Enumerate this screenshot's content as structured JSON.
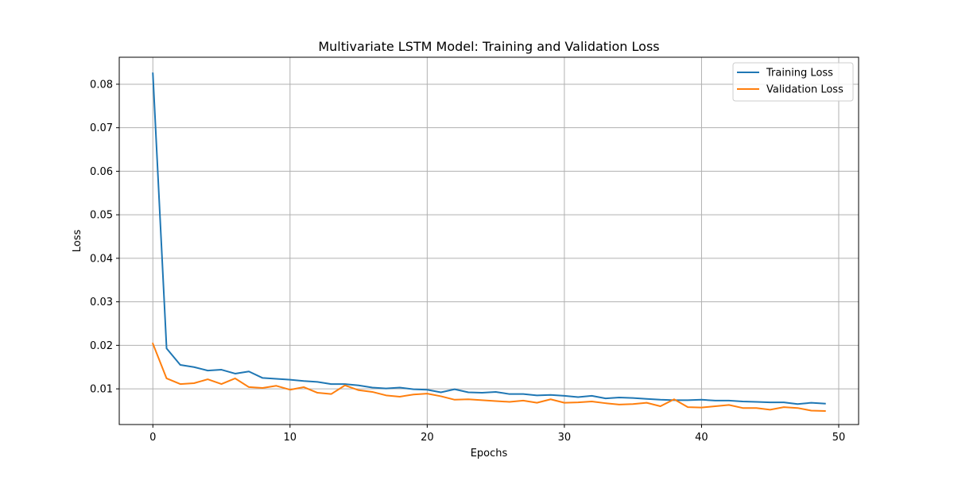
{
  "chart_data": {
    "type": "line",
    "title": "Multivariate LSTM Model: Training and Validation Loss",
    "xlabel": "Epochs",
    "ylabel": "Loss",
    "xlim": [
      -2.45,
      51.45
    ],
    "ylim": [
      0.0018,
      0.0862
    ],
    "xticks": [
      0,
      10,
      20,
      30,
      40,
      50
    ],
    "yticks": [
      0.01,
      0.02,
      0.03,
      0.04,
      0.05,
      0.06,
      0.07,
      0.08
    ],
    "ytick_labels": [
      "0.01",
      "0.02",
      "0.03",
      "0.04",
      "0.05",
      "0.06",
      "0.07",
      "0.08"
    ],
    "grid": true,
    "legend_position": "top-right",
    "x": [
      0,
      1,
      2,
      3,
      4,
      5,
      6,
      7,
      8,
      9,
      10,
      11,
      12,
      13,
      14,
      15,
      16,
      17,
      18,
      19,
      20,
      21,
      22,
      23,
      24,
      25,
      26,
      27,
      28,
      29,
      30,
      31,
      32,
      33,
      34,
      35,
      36,
      37,
      38,
      39,
      40,
      41,
      42,
      43,
      44,
      45,
      46,
      47,
      48,
      49
    ],
    "series": [
      {
        "name": "Training Loss",
        "color": "#1f77b4",
        "values": [
          0.0825,
          0.0193,
          0.0155,
          0.015,
          0.0142,
          0.0144,
          0.0135,
          0.014,
          0.0125,
          0.0123,
          0.0121,
          0.0118,
          0.0116,
          0.0111,
          0.0111,
          0.0108,
          0.0103,
          0.0101,
          0.0103,
          0.0099,
          0.0098,
          0.0092,
          0.0099,
          0.0092,
          0.0091,
          0.0093,
          0.0088,
          0.0088,
          0.0085,
          0.0086,
          0.0084,
          0.0081,
          0.0084,
          0.0078,
          0.008,
          0.0079,
          0.0077,
          0.0075,
          0.0074,
          0.0074,
          0.0075,
          0.0073,
          0.0073,
          0.0071,
          0.007,
          0.0069,
          0.0069,
          0.0065,
          0.0068,
          0.0066
        ]
      },
      {
        "name": "Validation Loss",
        "color": "#ff7f0e",
        "values": [
          0.0204,
          0.0124,
          0.0111,
          0.0113,
          0.0122,
          0.0111,
          0.0124,
          0.0104,
          0.0102,
          0.0107,
          0.0098,
          0.0104,
          0.0091,
          0.0088,
          0.0108,
          0.0097,
          0.0093,
          0.0085,
          0.0082,
          0.0087,
          0.0089,
          0.0083,
          0.0075,
          0.0076,
          0.0074,
          0.0072,
          0.007,
          0.0073,
          0.0068,
          0.0076,
          0.0068,
          0.0069,
          0.0071,
          0.0067,
          0.0064,
          0.0065,
          0.0068,
          0.006,
          0.0076,
          0.0058,
          0.0057,
          0.006,
          0.0063,
          0.0056,
          0.0056,
          0.0052,
          0.0058,
          0.0056,
          0.005,
          0.0049
        ]
      }
    ]
  }
}
